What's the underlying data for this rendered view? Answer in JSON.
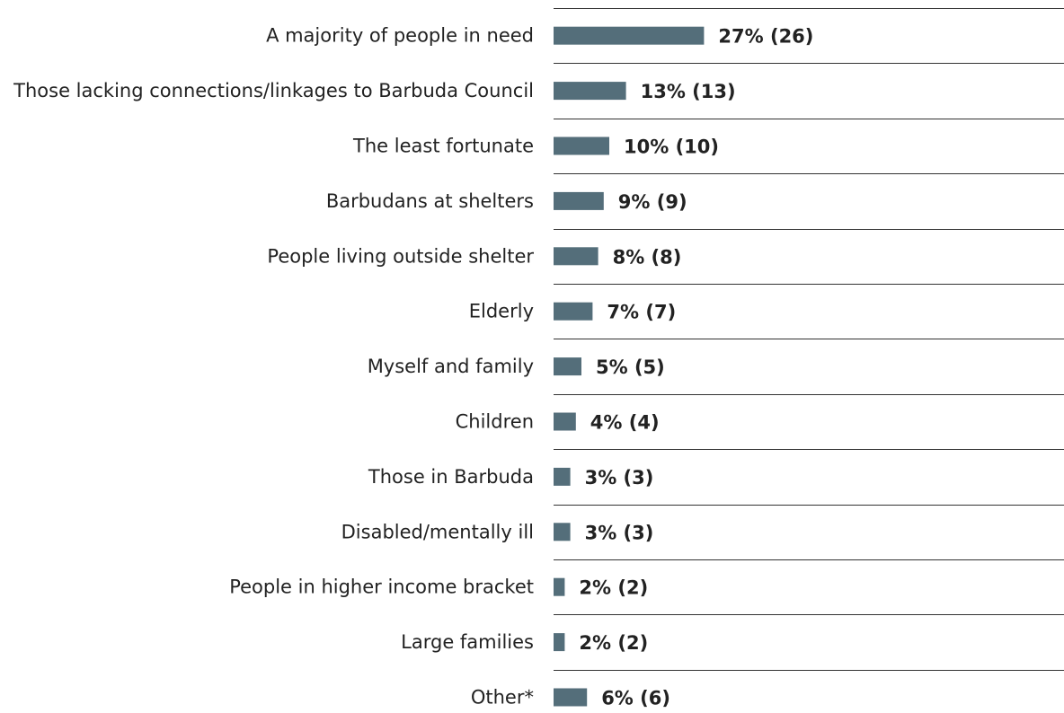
{
  "chart_data": {
    "type": "bar",
    "orientation": "horizontal",
    "categories": [
      "A majority of people in need",
      "Those lacking connections/linkages to Barbuda Council",
      "The least fortunate",
      "Barbudans at shelters",
      "People living outside shelter",
      "Elderly",
      "Myself and family",
      "Children",
      "Those in Barbuda",
      "Disabled/mentally ill",
      "People in higher income bracket",
      "Large families",
      "Other*"
    ],
    "values": [
      27,
      13,
      10,
      9,
      8,
      7,
      5,
      4,
      3,
      3,
      2,
      2,
      6
    ],
    "counts": [
      26,
      13,
      10,
      9,
      8,
      7,
      5,
      4,
      3,
      3,
      2,
      2,
      6
    ],
    "value_labels": [
      "27% (26)",
      "13% (13)",
      "10% (10)",
      "9% (9)",
      "8% (8)",
      "7% (7)",
      "5% (5)",
      "4% (4)",
      "3% (3)",
      "3% (3)",
      "2% (2)",
      "2% (2)",
      "6% (6)"
    ],
    "unit": "%",
    "title": "",
    "xlabel": "",
    "ylabel": "",
    "xlim": [
      0,
      100
    ],
    "grid": false,
    "legend": "none",
    "colors": {
      "bar": "#546e7a",
      "rule": "#333333",
      "text": "#222222"
    }
  }
}
